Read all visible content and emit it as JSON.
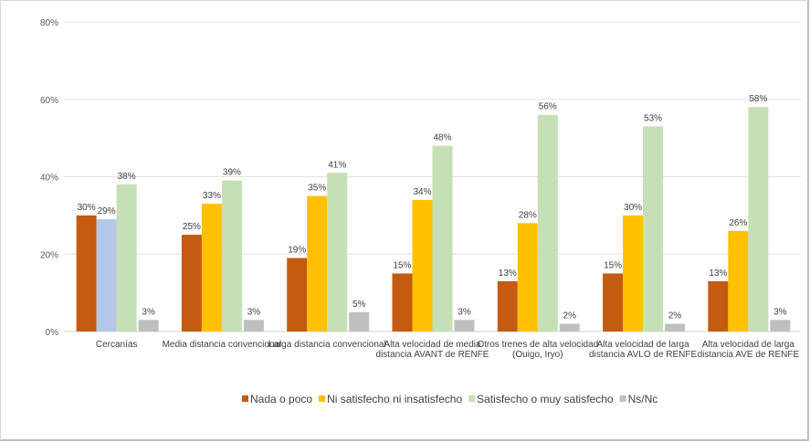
{
  "chart_data": {
    "type": "bar",
    "title": "",
    "xlabel": "",
    "ylabel": "",
    "ylim": [
      0,
      80
    ],
    "yticks": [
      "0%",
      "20%",
      "40%",
      "60%",
      "80%"
    ],
    "grid": true,
    "legend_position": "bottom",
    "categories": [
      [
        "Cercanías"
      ],
      [
        "Media distancia convencional"
      ],
      [
        "Larga distancia convencional"
      ],
      [
        "Alta velocidad de media",
        "distancia AVANT de RENFE"
      ],
      [
        "Otros trenes de alta velocidad",
        "(Ouigo, Iryo)"
      ],
      [
        "Alta velocidad de larga",
        "distancia AVLO de RENFE"
      ],
      [
        "Alta velocidad de larga",
        "distancia AVE de RENFE"
      ]
    ],
    "series": [
      {
        "name": "Nada o poco",
        "color": "#C55A11",
        "values": [
          30,
          25,
          19,
          15,
          13,
          15,
          13
        ]
      },
      {
        "name": "Ni satisfecho ni insatisfecho",
        "color": "#FFC000",
        "values": [
          29,
          33,
          35,
          34,
          28,
          30,
          26
        ]
      },
      {
        "name": "Satisfecho o muy satisfecho",
        "color": "#C5E0B4",
        "values": [
          38,
          39,
          41,
          48,
          56,
          53,
          58
        ]
      },
      {
        "name": "Ns/Nc",
        "color": "#BFBFBF",
        "values": [
          3,
          3,
          5,
          3,
          2,
          2,
          3
        ]
      }
    ],
    "highlight": {
      "series": 1,
      "category": 0,
      "color": "#B4C7E7"
    }
  }
}
